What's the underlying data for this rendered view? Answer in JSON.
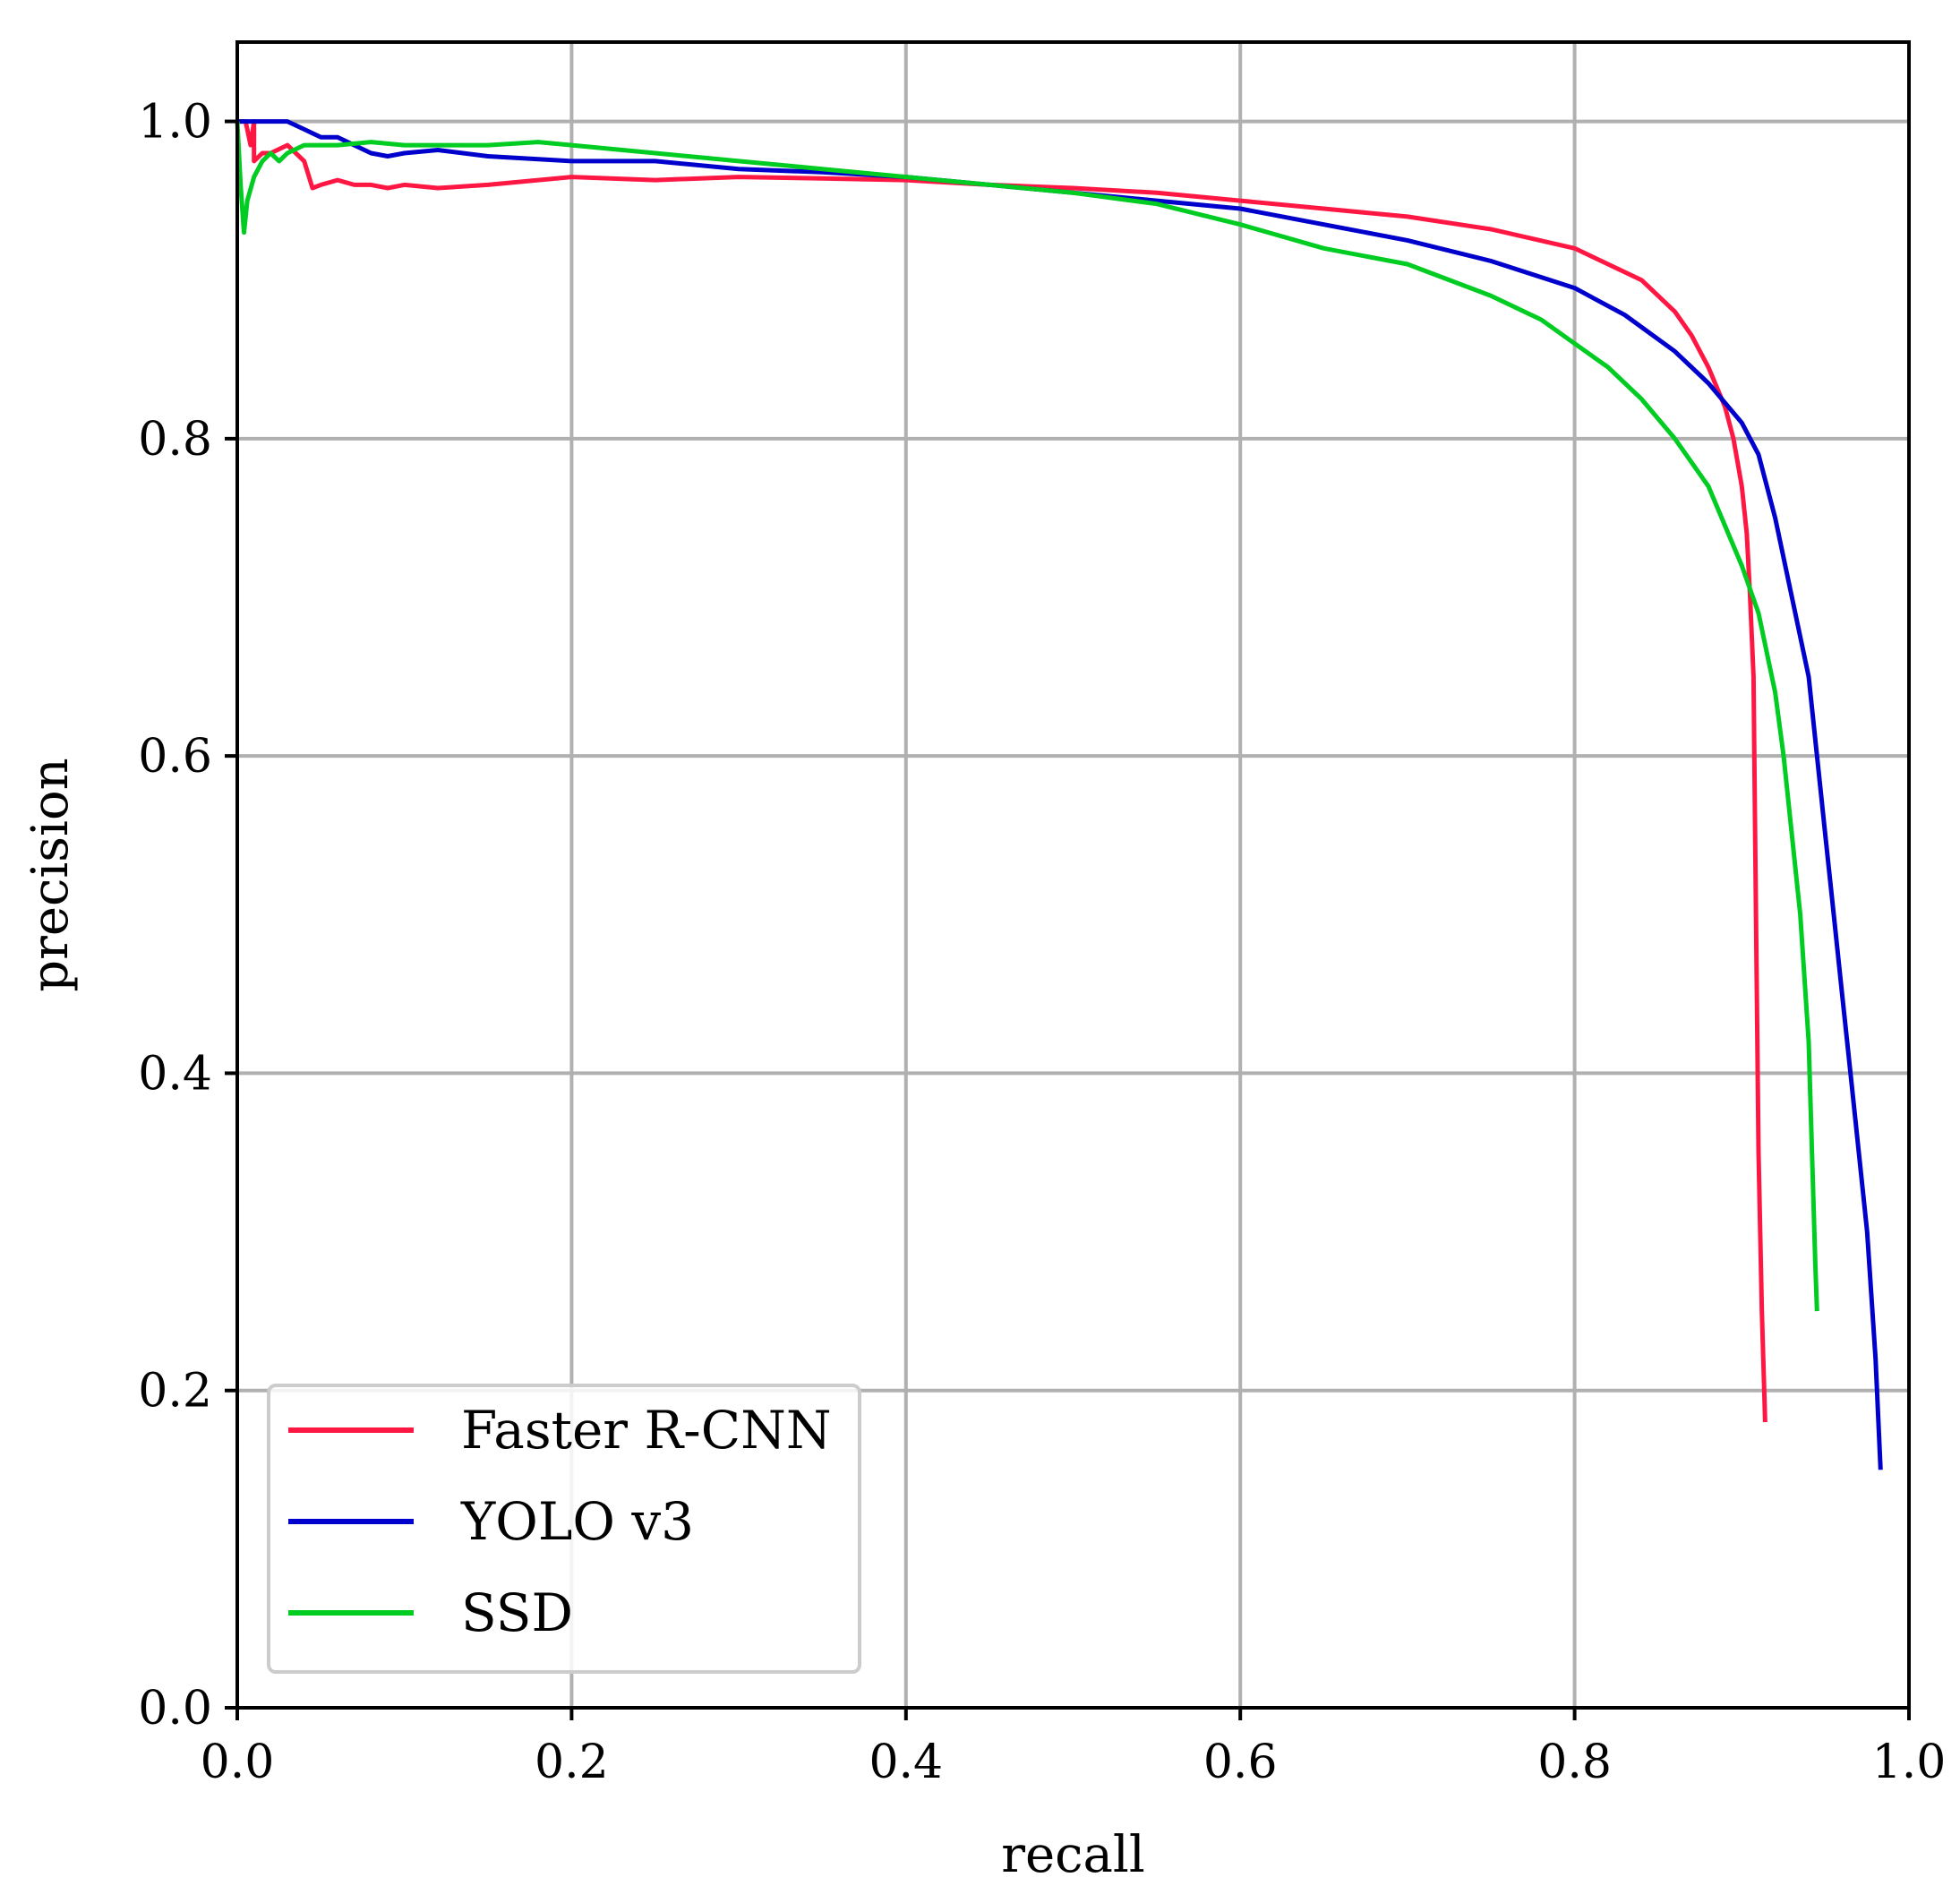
{
  "chart_data": {
    "type": "line",
    "title": "",
    "xlabel": "recall",
    "ylabel": "precision",
    "xlim": [
      0.0,
      1.0
    ],
    "ylim": [
      0.0,
      1.05
    ],
    "xticks": [
      "0.0",
      "0.2",
      "0.4",
      "0.6",
      "0.8",
      "1.0"
    ],
    "yticks": [
      "0.0",
      "0.2",
      "0.4",
      "0.6",
      "0.8",
      "1.0"
    ],
    "grid": true,
    "legend_position": "lower-left",
    "series": [
      {
        "name": "Faster R-CNN",
        "color": "#ff1744",
        "x": [
          0.0,
          0.005,
          0.008,
          0.01,
          0.01,
          0.015,
          0.02,
          0.03,
          0.04,
          0.045,
          0.05,
          0.06,
          0.07,
          0.08,
          0.09,
          0.1,
          0.12,
          0.15,
          0.2,
          0.25,
          0.3,
          0.35,
          0.4,
          0.45,
          0.5,
          0.55,
          0.6,
          0.65,
          0.7,
          0.75,
          0.8,
          0.82,
          0.84,
          0.86,
          0.87,
          0.88,
          0.89,
          0.895,
          0.9,
          0.903,
          0.905,
          0.907,
          0.908,
          0.909,
          0.91,
          0.912,
          0.914
        ],
        "y": [
          1.0,
          1.0,
          0.985,
          1.0,
          0.975,
          0.98,
          0.98,
          0.985,
          0.975,
          0.958,
          0.96,
          0.963,
          0.96,
          0.96,
          0.958,
          0.96,
          0.958,
          0.96,
          0.965,
          0.963,
          0.965,
          0.964,
          0.963,
          0.96,
          0.958,
          0.955,
          0.95,
          0.945,
          0.94,
          0.932,
          0.92,
          0.91,
          0.9,
          0.88,
          0.865,
          0.845,
          0.82,
          0.8,
          0.77,
          0.74,
          0.7,
          0.65,
          0.55,
          0.45,
          0.35,
          0.25,
          0.18
        ]
      },
      {
        "name": "YOLO v3",
        "color": "#0000cc",
        "x": [
          0.0,
          0.005,
          0.01,
          0.02,
          0.03,
          0.04,
          0.05,
          0.06,
          0.07,
          0.08,
          0.09,
          0.1,
          0.12,
          0.15,
          0.2,
          0.25,
          0.3,
          0.35,
          0.4,
          0.45,
          0.5,
          0.55,
          0.6,
          0.65,
          0.7,
          0.75,
          0.8,
          0.83,
          0.86,
          0.88,
          0.9,
          0.91,
          0.92,
          0.93,
          0.94,
          0.945,
          0.95,
          0.955,
          0.96,
          0.965,
          0.97,
          0.975,
          0.98,
          0.983
        ],
        "y": [
          1.0,
          1.0,
          1.0,
          1.0,
          1.0,
          0.995,
          0.99,
          0.99,
          0.985,
          0.98,
          0.978,
          0.98,
          0.982,
          0.978,
          0.975,
          0.975,
          0.97,
          0.968,
          0.965,
          0.96,
          0.955,
          0.95,
          0.945,
          0.935,
          0.925,
          0.912,
          0.895,
          0.878,
          0.855,
          0.835,
          0.81,
          0.79,
          0.75,
          0.7,
          0.65,
          0.6,
          0.55,
          0.5,
          0.45,
          0.4,
          0.35,
          0.3,
          0.22,
          0.15
        ]
      },
      {
        "name": "SSD",
        "color": "#00cc22",
        "x": [
          0.0,
          0.002,
          0.004,
          0.006,
          0.01,
          0.015,
          0.02,
          0.025,
          0.03,
          0.04,
          0.05,
          0.06,
          0.08,
          0.1,
          0.12,
          0.15,
          0.18,
          0.2,
          0.25,
          0.3,
          0.35,
          0.4,
          0.45,
          0.5,
          0.55,
          0.6,
          0.65,
          0.7,
          0.75,
          0.78,
          0.8,
          0.82,
          0.84,
          0.86,
          0.88,
          0.9,
          0.91,
          0.92,
          0.925,
          0.93,
          0.935,
          0.94,
          0.942,
          0.944,
          0.945
        ],
        "y": [
          1.0,
          0.96,
          0.93,
          0.95,
          0.965,
          0.975,
          0.98,
          0.975,
          0.98,
          0.985,
          0.985,
          0.985,
          0.987,
          0.985,
          0.985,
          0.985,
          0.987,
          0.985,
          0.98,
          0.975,
          0.97,
          0.965,
          0.96,
          0.955,
          0.948,
          0.935,
          0.92,
          0.91,
          0.89,
          0.875,
          0.86,
          0.845,
          0.825,
          0.8,
          0.77,
          0.72,
          0.69,
          0.64,
          0.6,
          0.55,
          0.5,
          0.42,
          0.35,
          0.28,
          0.25
        ]
      }
    ]
  }
}
